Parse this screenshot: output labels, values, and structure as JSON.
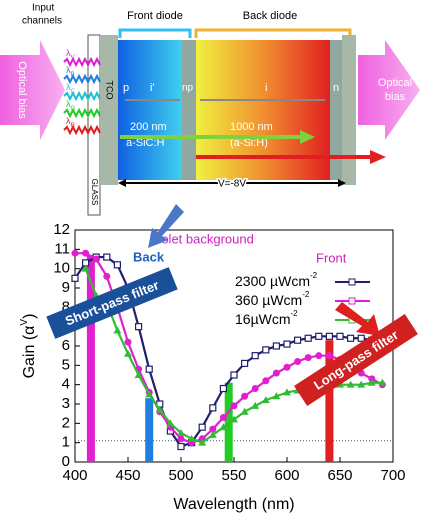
{
  "diagram": {
    "input_channels": [
      "Input",
      "channels"
    ],
    "front_diode": "Front diode",
    "back_diode": "Back diode",
    "optical_bias_left": "Optical bias",
    "optical_bias_right": [
      "Optical",
      "bias"
    ],
    "lambda": "λ",
    "lambda_subs": [
      "V",
      "B",
      "C",
      "G",
      "R"
    ],
    "tco_left": "TCO",
    "glass": "GLASS",
    "p": "p",
    "i_front": "i'",
    "np": "np",
    "i_back": "i",
    "n": "n",
    "front_thickness": "200 nm",
    "front_material": "a-SiC:H",
    "back_thickness": "1000 nm",
    "back_material": "(a-Si:H)",
    "voltage": "V=-8V"
  },
  "chart_data": {
    "type": "line",
    "x_label": "Wavelength (nm)",
    "y_label_parts": [
      "Gain (α",
      "V",
      ")"
    ],
    "xlim": [
      400,
      700
    ],
    "xticks": [
      400,
      450,
      500,
      550,
      600,
      650,
      700
    ],
    "ylim": [
      0,
      12
    ],
    "yticks": [
      0,
      1,
      2,
      3,
      4,
      5,
      6,
      7,
      8,
      9,
      10,
      11,
      12
    ],
    "x": [
      400,
      410,
      420,
      430,
      440,
      450,
      460,
      470,
      480,
      490,
      500,
      510,
      520,
      530,
      540,
      550,
      560,
      570,
      580,
      590,
      600,
      610,
      620,
      630,
      640,
      650,
      660,
      670,
      680,
      690,
      700
    ],
    "legend_exponent": "-2",
    "series": [
      {
        "name": "2300 µWcm",
        "color": "#1f1f6e",
        "marker": "square",
        "values": [
          9.5,
          10.3,
          10.6,
          10.6,
          10.2,
          9.0,
          7.0,
          4.8,
          3.0,
          1.6,
          0.8,
          1.0,
          1.8,
          2.8,
          3.8,
          4.5,
          5.1,
          5.5,
          5.8,
          6.0,
          6.1,
          6.3,
          6.4,
          6.5,
          6.5,
          6.5,
          6.4,
          6.4,
          6.3,
          6.0,
          null
        ]
      },
      {
        "name": "360 µWcm",
        "color": "#e020d0",
        "marker": "circle",
        "values": [
          10.8,
          10.8,
          10.5,
          9.6,
          8.0,
          6.2,
          4.8,
          3.6,
          2.6,
          1.8,
          1.2,
          1.0,
          1.2,
          1.7,
          2.3,
          2.9,
          3.4,
          3.8,
          4.2,
          4.6,
          4.9,
          5.2,
          5.4,
          5.5,
          5.5,
          5.3,
          5.0,
          4.6,
          4.3,
          4.0,
          null
        ]
      },
      {
        "name": "16µWcm",
        "color": "#33bb33",
        "marker": "triangle",
        "values": [
          null,
          10.0,
          8.6,
          8.2,
          6.8,
          5.6,
          4.5,
          3.5,
          2.7,
          2.0,
          1.5,
          1.2,
          1.0,
          1.4,
          1.8,
          2.2,
          2.6,
          2.9,
          3.2,
          3.4,
          3.6,
          3.7,
          3.8,
          3.9,
          3.9,
          4.0,
          4.0,
          4.0,
          4.1,
          4.1,
          null
        ]
      }
    ],
    "reference_line": 1.1,
    "channels": [
      {
        "wavelength": 415,
        "value": 10.7,
        "color": "#e020d0"
      },
      {
        "wavelength": 470,
        "value": 3.3,
        "color": "#1e7fe0"
      },
      {
        "wavelength": 545,
        "value": 4.1,
        "color": "#22cc22"
      },
      {
        "wavelength": 640,
        "value": 6.3,
        "color": "#e02020"
      }
    ],
    "annotations": {
      "violet_background": "Violet background",
      "back": "Back",
      "front": "Front",
      "short_pass": "Short-pass filter",
      "long_pass": "Long-pass filter"
    }
  }
}
